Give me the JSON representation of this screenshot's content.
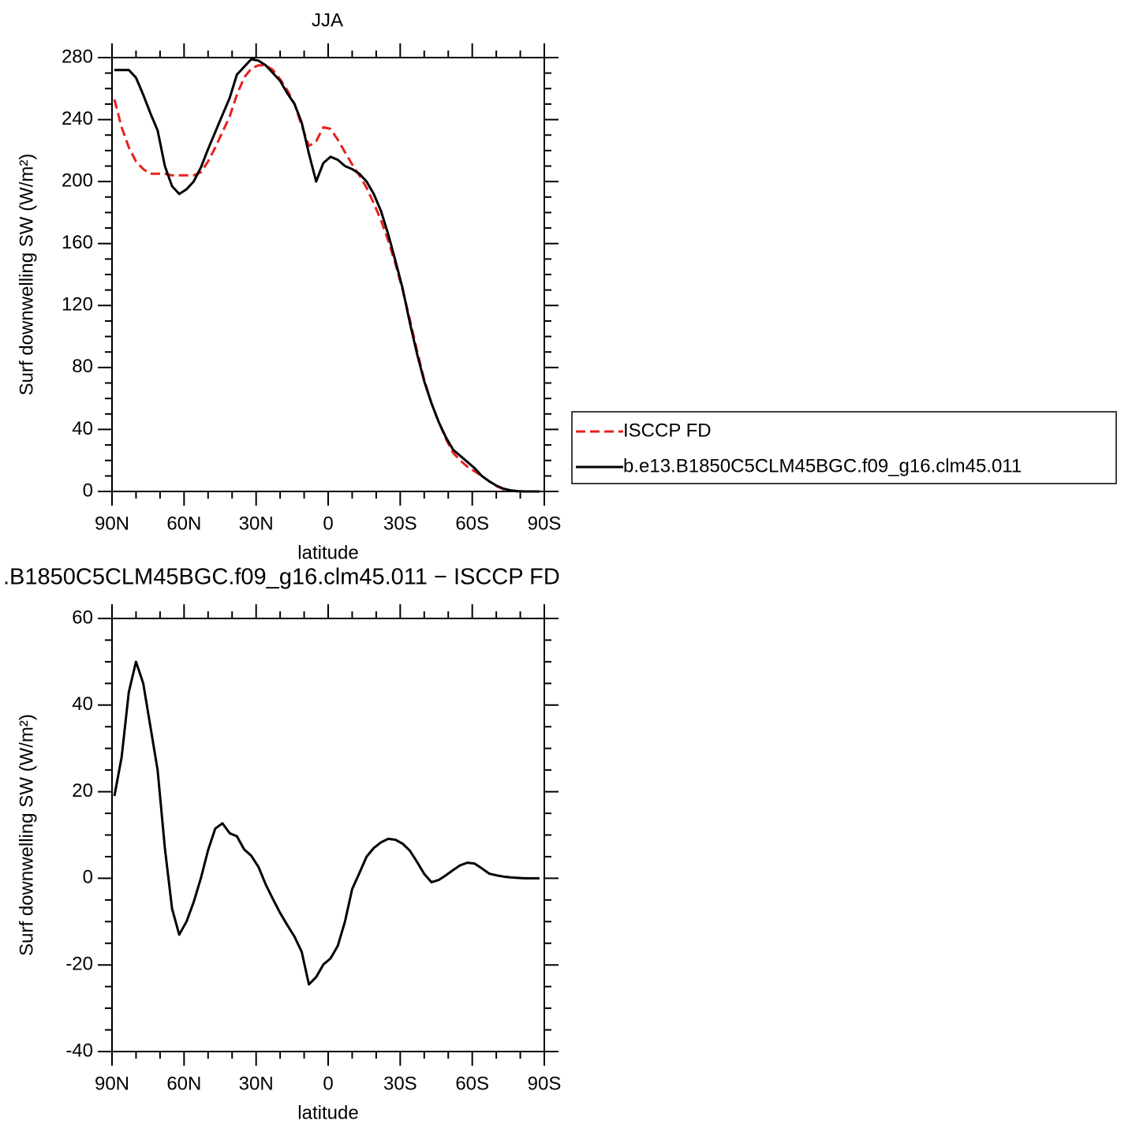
{
  "chart_data": [
    {
      "type": "line",
      "title": "JJA",
      "x": [
        89,
        86,
        83,
        80,
        77,
        74,
        71,
        68,
        65,
        62,
        59,
        56,
        53,
        50,
        47,
        44,
        41,
        38,
        35,
        32,
        29,
        26,
        23,
        20,
        17,
        14,
        11,
        8,
        5,
        2,
        -1,
        -4,
        -7,
        -10,
        -13,
        -16,
        -19,
        -22,
        -25,
        -28,
        -31,
        -34,
        -37,
        -40,
        -43,
        -46,
        -49,
        -52,
        -55,
        -58,
        -61,
        -64,
        -67,
        -70,
        -73,
        -76,
        -79,
        -82,
        -85,
        -88
      ],
      "series": [
        {
          "name": "ISCCP FD",
          "color": "#e8201c",
          "linestyle": "dashed",
          "values": [
            253,
            235,
            222,
            213,
            208,
            205,
            205,
            205,
            204,
            204,
            204,
            204,
            206,
            213,
            222,
            232,
            242,
            256,
            267,
            273,
            275,
            275,
            272,
            266,
            259,
            250,
            236,
            223,
            226,
            235,
            234,
            227,
            219,
            211,
            204,
            196,
            186,
            175,
            162,
            147,
            130,
            111,
            91,
            72,
            57,
            45,
            34,
            25,
            20,
            16,
            13,
            10,
            6.5,
            3.5,
            1.5,
            0.5,
            0,
            0,
            0,
            0
          ]
        },
        {
          "name": "b.e13.B1850C5CLM45BGC.f09_g16.clm45.011",
          "color": "#000000",
          "linestyle": "solid",
          "values": [
            272,
            272,
            272,
            267,
            256,
            244,
            233,
            210,
            197,
            192,
            195,
            200,
            209,
            221,
            232,
            243,
            254,
            269,
            274,
            279,
            278,
            275,
            270,
            265,
            257,
            250,
            238,
            218,
            200,
            212,
            216,
            214,
            210,
            208,
            205,
            200,
            192,
            181,
            166,
            149,
            131,
            109,
            89,
            71,
            57,
            45,
            35,
            27,
            23,
            19,
            15,
            10,
            6.6,
            3.8,
            1.8,
            0.7,
            0.2,
            0,
            0,
            0
          ]
        }
      ],
      "xlabel": "latitude",
      "ylabel": "Surf downwelling SW (W/m²)",
      "xlim": [
        90,
        -90
      ],
      "xticks": [
        {
          "value": 90,
          "label": "90N"
        },
        {
          "value": 60,
          "label": "60N"
        },
        {
          "value": 30,
          "label": "30N"
        },
        0,
        {
          "value": -30,
          "label": "30S"
        },
        {
          "value": -60,
          "label": "60S"
        },
        {
          "value": -90,
          "label": "90S"
        }
      ],
      "xminorticks": [
        80,
        70,
        50,
        40,
        20,
        10,
        -10,
        -20,
        -40,
        -50,
        -70,
        -80
      ],
      "ylim": [
        0,
        280
      ],
      "yticks": [
        0,
        40,
        80,
        120,
        160,
        200,
        240,
        280
      ],
      "yminorticks": [
        10,
        20,
        30,
        50,
        60,
        70,
        90,
        100,
        110,
        130,
        140,
        150,
        170,
        180,
        190,
        210,
        220,
        230,
        250,
        260,
        270
      ],
      "legend": "right"
    },
    {
      "type": "line",
      "title": ".B1850C5CLM45BGC.f09_g16.clm45.011 − ISCCP FD",
      "x": [
        89,
        86,
        83,
        80,
        77,
        74,
        71,
        68,
        65,
        62,
        59,
        56,
        53,
        50,
        47,
        44,
        41,
        38,
        35,
        32,
        29,
        26,
        23,
        20,
        17,
        14,
        11,
        8,
        5,
        2,
        -1,
        -4,
        -7,
        -10,
        -13,
        -16,
        -19,
        -22,
        -25,
        -28,
        -31,
        -34,
        -37,
        -40,
        -43,
        -46,
        -49,
        -52,
        -55,
        -58,
        -61,
        -64,
        -67,
        -70,
        -73,
        -76,
        -79,
        -82,
        -85,
        -88
      ],
      "values": [
        19,
        28,
        43,
        50,
        45,
        35,
        25,
        7,
        -7,
        -13,
        -10,
        -5.5,
        0,
        6.5,
        11.5,
        12.7,
        10.4,
        9.7,
        6.7,
        5.2,
        2.6,
        -1.4,
        -4.8,
        -8,
        -10.8,
        -13.5,
        -17,
        -24.5,
        -22.8,
        -19.9,
        -18.5,
        -15.6,
        -10,
        -2.5,
        1.2,
        5,
        7,
        8.3,
        9.1,
        8.9,
        8,
        6.4,
        3.8,
        1,
        -0.9,
        -0.4,
        0.7,
        1.9,
        3,
        3.6,
        3.4,
        2.3,
        1.1,
        0.7,
        0.4,
        0.2,
        0.1,
        0,
        0,
        0
      ],
      "color": "#000000",
      "xlabel": "latitude",
      "ylabel": "Surf downwelling SW (W/m²)",
      "xlim": [
        90,
        -90
      ],
      "xticks": [
        {
          "value": 90,
          "label": "90N"
        },
        {
          "value": 60,
          "label": "60N"
        },
        {
          "value": 30,
          "label": "30N"
        },
        0,
        {
          "value": -30,
          "label": "30S"
        },
        {
          "value": -60,
          "label": "60S"
        },
        {
          "value": -90,
          "label": "90S"
        }
      ],
      "xminorticks": [
        80,
        70,
        50,
        40,
        20,
        10,
        -10,
        -20,
        -40,
        -50,
        -70,
        -80
      ],
      "ylim": [
        -40,
        60
      ],
      "yticks": [
        -40,
        -20,
        0,
        20,
        40,
        60
      ],
      "yminorticks": [
        -35,
        -30,
        -25,
        -15,
        -10,
        -5,
        5,
        10,
        15,
        25,
        30,
        35,
        45,
        50,
        55
      ]
    }
  ]
}
